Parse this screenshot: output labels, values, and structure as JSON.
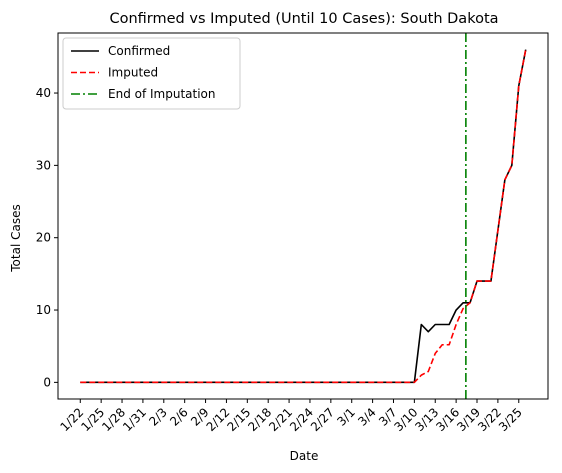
{
  "chart_data": {
    "type": "line",
    "title": "Confirmed vs Imputed (Until 10 Cases): South Dakota",
    "xlabel": "Date",
    "ylabel": "Total Cases",
    "x_dates": [
      "1/22",
      "1/23",
      "1/24",
      "1/25",
      "1/26",
      "1/27",
      "1/28",
      "1/29",
      "1/30",
      "1/31",
      "2/1",
      "2/2",
      "2/3",
      "2/4",
      "2/5",
      "2/6",
      "2/7",
      "2/8",
      "2/9",
      "2/10",
      "2/11",
      "2/12",
      "2/13",
      "2/14",
      "2/15",
      "2/16",
      "2/17",
      "2/18",
      "2/19",
      "2/20",
      "2/21",
      "2/22",
      "2/23",
      "2/24",
      "2/25",
      "2/26",
      "2/27",
      "2/28",
      "2/29",
      "3/1",
      "3/2",
      "3/3",
      "3/4",
      "3/5",
      "3/6",
      "3/7",
      "3/8",
      "3/9",
      "3/10",
      "3/11",
      "3/12",
      "3/13",
      "3/14",
      "3/15",
      "3/16",
      "3/17",
      "3/18",
      "3/19",
      "3/20",
      "3/21",
      "3/22",
      "3/23",
      "3/24",
      "3/25",
      "3/26"
    ],
    "xtick_labels": [
      "1/22",
      "1/25",
      "1/28",
      "1/31",
      "2/3",
      "2/6",
      "2/9",
      "2/12",
      "2/15",
      "2/18",
      "2/21",
      "2/24",
      "2/27",
      "3/1",
      "3/4",
      "3/7",
      "3/10",
      "3/13",
      "3/16",
      "3/19",
      "3/22",
      "3/25"
    ],
    "yticks": [
      0,
      10,
      20,
      30,
      40
    ],
    "ylim": [
      -2.3,
      48.3
    ],
    "series": [
      {
        "name": "Confirmed",
        "color": "#000000",
        "style": "solid",
        "values": [
          0,
          0,
          0,
          0,
          0,
          0,
          0,
          0,
          0,
          0,
          0,
          0,
          0,
          0,
          0,
          0,
          0,
          0,
          0,
          0,
          0,
          0,
          0,
          0,
          0,
          0,
          0,
          0,
          0,
          0,
          0,
          0,
          0,
          0,
          0,
          0,
          0,
          0,
          0,
          0,
          0,
          0,
          0,
          0,
          0,
          0,
          0,
          0,
          0,
          8,
          7,
          8,
          8,
          8,
          10,
          11,
          11,
          14,
          14,
          14,
          21,
          28,
          30,
          41,
          46
        ]
      },
      {
        "name": "Imputed",
        "color": "#ff0000",
        "style": "dashed",
        "values": [
          0,
          0,
          0,
          0,
          0,
          0,
          0,
          0,
          0,
          0,
          0,
          0,
          0,
          0,
          0,
          0,
          0,
          0,
          0,
          0,
          0,
          0,
          0,
          0,
          0,
          0,
          0,
          0,
          0,
          0,
          0,
          0,
          0,
          0,
          0,
          0,
          0,
          0,
          0,
          0,
          0,
          0,
          0,
          0,
          0,
          0,
          0,
          0,
          0,
          1,
          1.5,
          4,
          5.2,
          5.2,
          8,
          10.2,
          11,
          14,
          14,
          14,
          21,
          28,
          30,
          41,
          46
        ]
      }
    ],
    "vline": {
      "name": "End of Imputation",
      "x_index": 55.4,
      "color": "#008000",
      "style": "dashdot"
    },
    "legend_position": "upper-left"
  }
}
